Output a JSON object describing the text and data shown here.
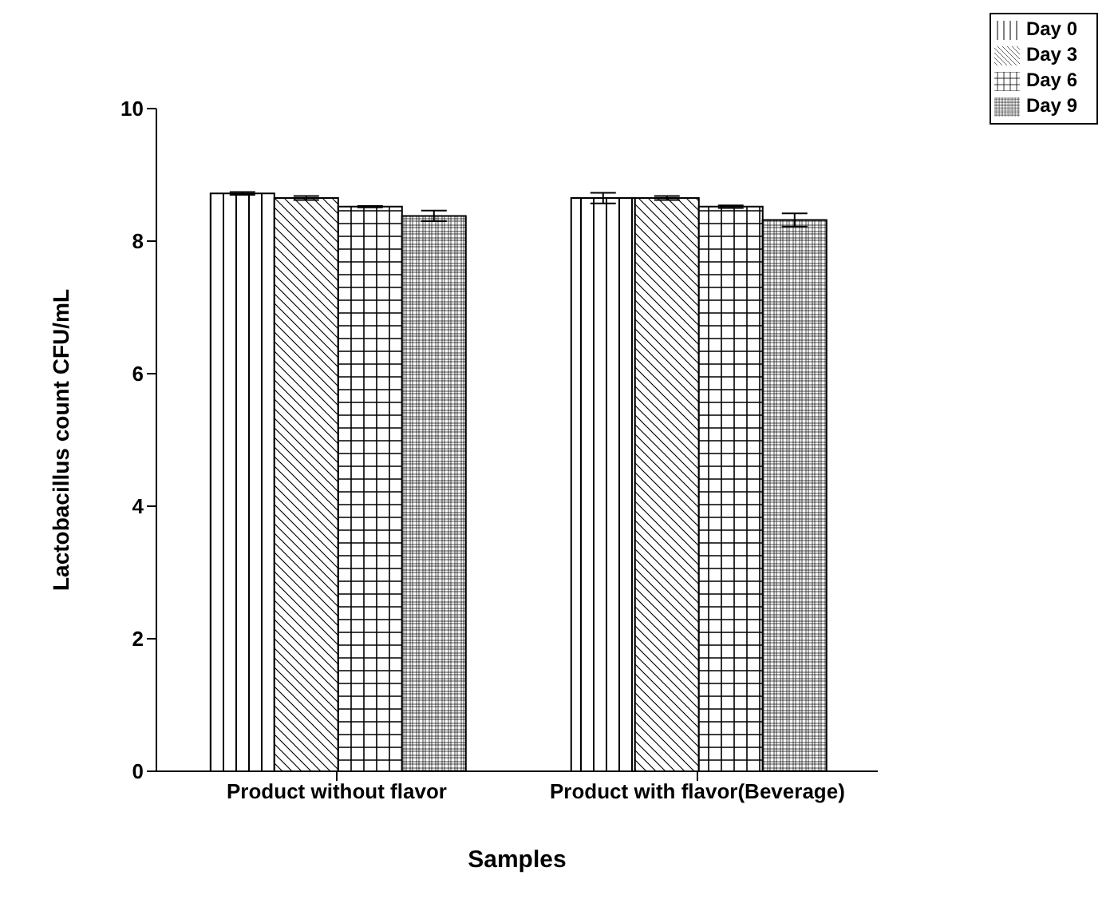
{
  "chart_data": {
    "type": "bar",
    "xlabel": "Samples",
    "ylabel": "Lactobacillus count CFU/mL",
    "categories": [
      "Product without flavor",
      "Product with flavor(Beverage)"
    ],
    "series": [
      {
        "name": "Day 0",
        "color": "#000000",
        "values": [
          8.72,
          8.65
        ],
        "errors": [
          0.02,
          0.08
        ]
      },
      {
        "name": "Day 3",
        "color": "#000000",
        "values": [
          8.65,
          8.65
        ],
        "errors": [
          0.03,
          0.03
        ]
      },
      {
        "name": "Day 6",
        "color": "#000000",
        "values": [
          8.52,
          8.52
        ],
        "errors": [
          0.01,
          0.02
        ]
      },
      {
        "name": "Day 9",
        "color": "#000000",
        "values": [
          8.38,
          8.32
        ],
        "errors": [
          0.08,
          0.1
        ]
      }
    ],
    "ylim": [
      0,
      10
    ],
    "yticks": [
      0,
      2,
      4,
      6,
      8,
      10
    ],
    "legend": "top right"
  }
}
